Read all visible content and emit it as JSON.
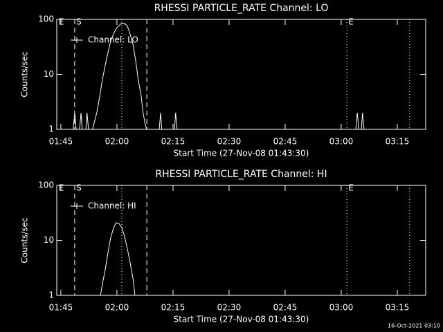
{
  "chart_data": [
    {
      "type": "line",
      "title": "RHESSI PARTICLE_RATE Channel: LO",
      "xlabel": "Start Time (27-Nov-08 01:43:30)",
      "ylabel": "Counts/sec",
      "log_y": true,
      "ylim": [
        1,
        100
      ],
      "yticks": [
        1,
        10,
        100
      ],
      "xlim": [
        0.4,
        99.1
      ],
      "xticks": [
        {
          "value": 1.5,
          "label": "01:45"
        },
        {
          "value": 16.5,
          "label": "02:00"
        },
        {
          "value": 31.5,
          "label": "02:15"
        },
        {
          "value": 46.5,
          "label": "02:30"
        },
        {
          "value": 61.5,
          "label": "02:45"
        },
        {
          "value": 76.5,
          "label": "03:00"
        },
        {
          "value": 91.5,
          "label": "03:15"
        }
      ],
      "series": [
        {
          "name": "Channel: LO",
          "color": "#ffffff",
          "x": [
            4.8,
            5.2,
            5.6,
            6.5,
            6.9,
            7.2,
            8.2,
            8.5,
            8.9,
            10.0,
            10.4,
            11.1,
            11.9,
            12.6,
            13.4,
            14.1,
            14.8,
            15.6,
            16.3,
            17.1,
            17.8,
            18.5,
            19.3,
            20.0,
            20.8,
            21.5,
            22.2,
            23.0,
            23.5,
            24.1,
            24.5,
            25.4,
            27.8,
            28.2,
            28.5,
            31.9,
            32.2,
            32.6,
            80.4,
            80.8,
            81.2,
            81.9,
            82.2,
            82.6
          ],
          "values": [
            1,
            2,
            1,
            1,
            2,
            1,
            1,
            2,
            1,
            1,
            1.3,
            2,
            4,
            8,
            15,
            25,
            40,
            55,
            68,
            78,
            85,
            85,
            75,
            55,
            35,
            18,
            8,
            4,
            2,
            1.2,
            1,
            1,
            1,
            2,
            1,
            1,
            2,
            1,
            1,
            2,
            1,
            1,
            2,
            1
          ]
        }
      ],
      "vlines": [
        {
          "x": 5.2,
          "style": "dashed"
        },
        {
          "x": 17.8,
          "style": "dotted"
        },
        {
          "x": 24.5,
          "style": "dashed"
        },
        {
          "x": 78.0,
          "style": "dotted"
        },
        {
          "x": 94.8,
          "style": "dotted"
        }
      ],
      "annotations": [
        {
          "text": "E",
          "x": 0.9
        },
        {
          "text": "S",
          "x": 5.6
        },
        {
          "text": "E",
          "x": 78.4
        }
      ]
    },
    {
      "type": "line",
      "title": "RHESSI PARTICLE_RATE Channel: HI",
      "xlabel": "Start Time (27-Nov-08 01:43:30)",
      "ylabel": "Counts/sec",
      "log_y": true,
      "ylim": [
        1,
        100
      ],
      "yticks": [
        1,
        10,
        100
      ],
      "xlim": [
        0.4,
        99.1
      ],
      "xticks": [
        {
          "value": 1.5,
          "label": "01:45"
        },
        {
          "value": 16.5,
          "label": "02:00"
        },
        {
          "value": 31.5,
          "label": "02:15"
        },
        {
          "value": 46.5,
          "label": "02:30"
        },
        {
          "value": 61.5,
          "label": "02:45"
        },
        {
          "value": 76.5,
          "label": "03:00"
        },
        {
          "value": 91.5,
          "label": "03:15"
        }
      ],
      "series": [
        {
          "name": "Channel: HI",
          "color": "#ffffff",
          "x": [
            12.1,
            12.6,
            13.4,
            14.1,
            14.8,
            15.6,
            16.3,
            17.1,
            17.8,
            18.5,
            19.3,
            20.0,
            20.8,
            21.3
          ],
          "values": [
            1,
            1.6,
            3,
            6,
            11,
            17,
            21,
            20,
            17,
            12,
            7,
            4,
            2,
            1
          ]
        }
      ],
      "vlines": [
        {
          "x": 5.2,
          "style": "dashed"
        },
        {
          "x": 17.8,
          "style": "dotted"
        },
        {
          "x": 24.5,
          "style": "dashed"
        },
        {
          "x": 78.0,
          "style": "dotted"
        },
        {
          "x": 94.8,
          "style": "dotted"
        }
      ],
      "annotations": [
        {
          "text": "E",
          "x": 0.9
        },
        {
          "text": "S",
          "x": 5.6
        },
        {
          "text": "E",
          "x": 78.4
        }
      ]
    }
  ],
  "footer": "16-Oct-2021 03:10"
}
